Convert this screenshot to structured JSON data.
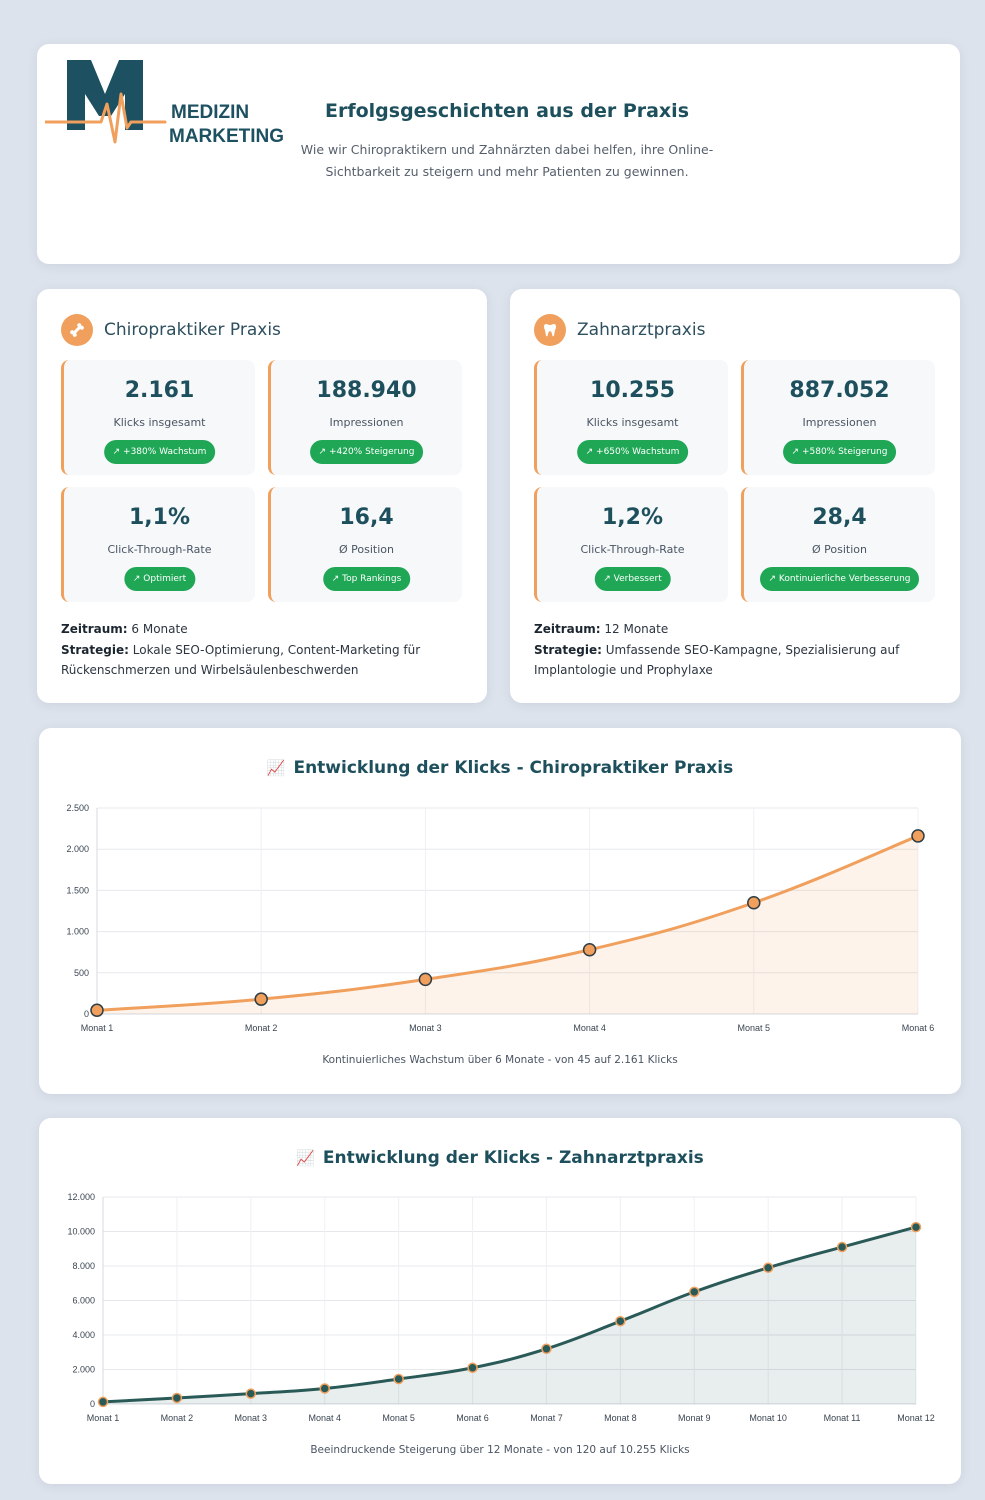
{
  "brand": {
    "line1": "MEDIZIN",
    "line2": "MARKETING"
  },
  "header": {
    "title": "Erfolgsgeschichten aus der Praxis",
    "subtitle": "Wie wir Chiropraktikern und Zahnärzten dabei helfen, ihre Online-Sichtbarkeit zu steigern und mehr Patienten zu gewinnen."
  },
  "cases": [
    {
      "icon": "bone-icon",
      "title": "Chiropraktiker Praxis",
      "metrics": [
        {
          "value": "2.161",
          "label": "Klicks insgesamt",
          "badge": "↗ +380% Wachstum"
        },
        {
          "value": "188.940",
          "label": "Impressionen",
          "badge": "↗ +420% Steigerung"
        },
        {
          "value": "1,1%",
          "label": "Click-Through-Rate",
          "badge": "↗ Optimiert"
        },
        {
          "value": "16,4",
          "label": "Ø Position",
          "badge": "↗ Top Rankings"
        }
      ],
      "zeitraum_label": "Zeitraum:",
      "zeitraum": "6 Monate",
      "strategie_label": "Strategie:",
      "strategie": "Lokale SEO-Optimierung, Content-Marketing für Rückenschmerzen und Wirbelsäulenbeschwerden"
    },
    {
      "icon": "tooth-icon",
      "title": "Zahnarztpraxis",
      "metrics": [
        {
          "value": "10.255",
          "label": "Klicks insgesamt",
          "badge": "↗ +650% Wachstum"
        },
        {
          "value": "887.052",
          "label": "Impressionen",
          "badge": "↗ +580% Steigerung"
        },
        {
          "value": "1,2%",
          "label": "Click-Through-Rate",
          "badge": "↗ Verbessert"
        },
        {
          "value": "28,4",
          "label": "Ø Position",
          "badge": "↗ Kontinuierliche Verbesserung"
        }
      ],
      "zeitraum_label": "Zeitraum:",
      "zeitraum": "12 Monate",
      "strategie_label": "Strategie:",
      "strategie": "Umfassende SEO-Kampagne, Spezialisierung auf Implantologie und Prophylaxe"
    }
  ],
  "colors": {
    "accent_orange": "#f0a05c",
    "primary_teal": "#1d4f5c",
    "badge_green": "#1fa756",
    "line_dark": "#2a5a57"
  },
  "chart_data": [
    {
      "type": "line",
      "title": "Entwicklung der Klicks - Chiropraktiker Praxis",
      "categories": [
        "Monat 1",
        "Monat 2",
        "Monat 3",
        "Monat 4",
        "Monat 5",
        "Monat 6"
      ],
      "series": [
        {
          "values": [
            45,
            180,
            420,
            780,
            1350,
            2161
          ]
        }
      ],
      "ylim": [
        0,
        2500
      ],
      "yticks": [
        0,
        500,
        1000,
        1500,
        2000,
        2500
      ],
      "ytick_labels": [
        "0",
        "500",
        "1.000",
        "1.500",
        "2.000",
        "2.500"
      ],
      "grid": true,
      "fill": true,
      "color": "#f0a05c",
      "caption": "Kontinuierliches Wachstum über 6 Monate - von 45 auf 2.161 Klicks"
    },
    {
      "type": "line",
      "title": "Entwicklung der Klicks - Zahnarztpraxis",
      "categories": [
        "Monat 1",
        "Monat 2",
        "Monat 3",
        "Monat 4",
        "Monat 5",
        "Monat 6",
        "Monat 7",
        "Monat 8",
        "Monat 9",
        "Monat 10",
        "Monat 11",
        "Monat 12"
      ],
      "series": [
        {
          "values": [
            120,
            350,
            600,
            900,
            1450,
            2100,
            3200,
            4800,
            6500,
            7900,
            9100,
            10255
          ]
        }
      ],
      "ylim": [
        0,
        12000
      ],
      "yticks": [
        0,
        2000,
        4000,
        6000,
        8000,
        10000,
        12000
      ],
      "ytick_labels": [
        "0",
        "2.000",
        "4.000",
        "6.000",
        "8.000",
        "10.000",
        "12.000"
      ],
      "grid": true,
      "fill": true,
      "color": "#2a5a57",
      "caption": "Beeindruckende Steigerung über 12 Monate - von 120 auf 10.255 Klicks"
    }
  ]
}
